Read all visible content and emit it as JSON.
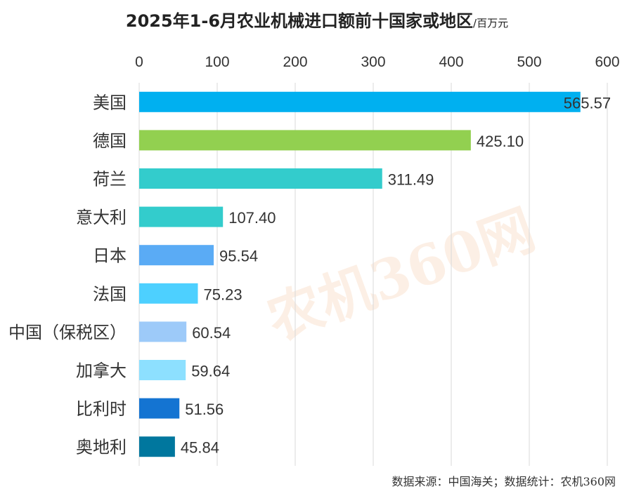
{
  "chart_data": {
    "type": "bar",
    "orientation": "horizontal",
    "title": "2025年1-6月农业机械进口额前十国家或地区",
    "unit": "/百万元",
    "xlim": [
      0,
      600
    ],
    "x_ticks": [
      "0",
      "100",
      "200",
      "300",
      "400",
      "500",
      "600"
    ],
    "x_tick_values": [
      0,
      100,
      200,
      300,
      400,
      500,
      600
    ],
    "grid": true,
    "categories": [
      "美国",
      "德国",
      "荷兰",
      "意大利",
      "日本",
      "法国",
      "中国（保税区）",
      "加拿大",
      "比利时",
      "奥地利"
    ],
    "values": [
      565.57,
      425.1,
      311.49,
      107.4,
      95.54,
      75.23,
      60.54,
      59.64,
      51.56,
      45.84
    ],
    "value_labels": [
      "565.57",
      "425.10",
      "311.49",
      "107.40",
      "95.54",
      "75.23",
      "60.54",
      "59.64",
      "51.56",
      "45.84"
    ],
    "colors": [
      "#00b0f0",
      "#92d050",
      "#33cccc",
      "#33cccc",
      "#5aabf5",
      "#4dd0ff",
      "#9dcaf9",
      "#8de0ff",
      "#1474d2",
      "#00779e"
    ]
  },
  "source_text": "数据来源：中国海关；数据统计：农机360网",
  "watermark_text": "农机360网"
}
